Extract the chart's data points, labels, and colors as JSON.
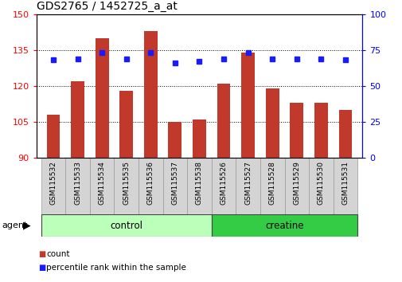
{
  "title": "GDS2765 / 1452725_a_at",
  "samples": [
    "GSM115532",
    "GSM115533",
    "GSM115534",
    "GSM115535",
    "GSM115536",
    "GSM115537",
    "GSM115538",
    "GSM115526",
    "GSM115527",
    "GSM115528",
    "GSM115529",
    "GSM115530",
    "GSM115531"
  ],
  "counts": [
    108,
    122,
    140,
    118,
    143,
    105,
    106,
    121,
    134,
    119,
    113,
    113,
    110
  ],
  "percentiles": [
    68,
    69,
    73,
    69,
    73,
    66,
    67,
    69,
    73,
    69,
    69,
    69,
    68
  ],
  "bar_color": "#c0392b",
  "dot_color": "#1a1aff",
  "ylim_left": [
    90,
    150
  ],
  "ylim_right": [
    0,
    100
  ],
  "yticks_left": [
    90,
    105,
    120,
    135,
    150
  ],
  "yticks_right": [
    0,
    25,
    50,
    75,
    100
  ],
  "groups": [
    {
      "label": "control",
      "start": 0,
      "end": 7,
      "color": "#bbffbb"
    },
    {
      "label": "creatine",
      "start": 7,
      "end": 13,
      "color": "#33cc44"
    }
  ],
  "agent_label": "agent",
  "legend_count_label": "count",
  "legend_percentile_label": "percentile rank within the sample",
  "bar_bottom": 90,
  "grid_color": "black",
  "tick_area_bg": "#cccccc",
  "title_fontsize": 10,
  "bar_width": 0.55
}
